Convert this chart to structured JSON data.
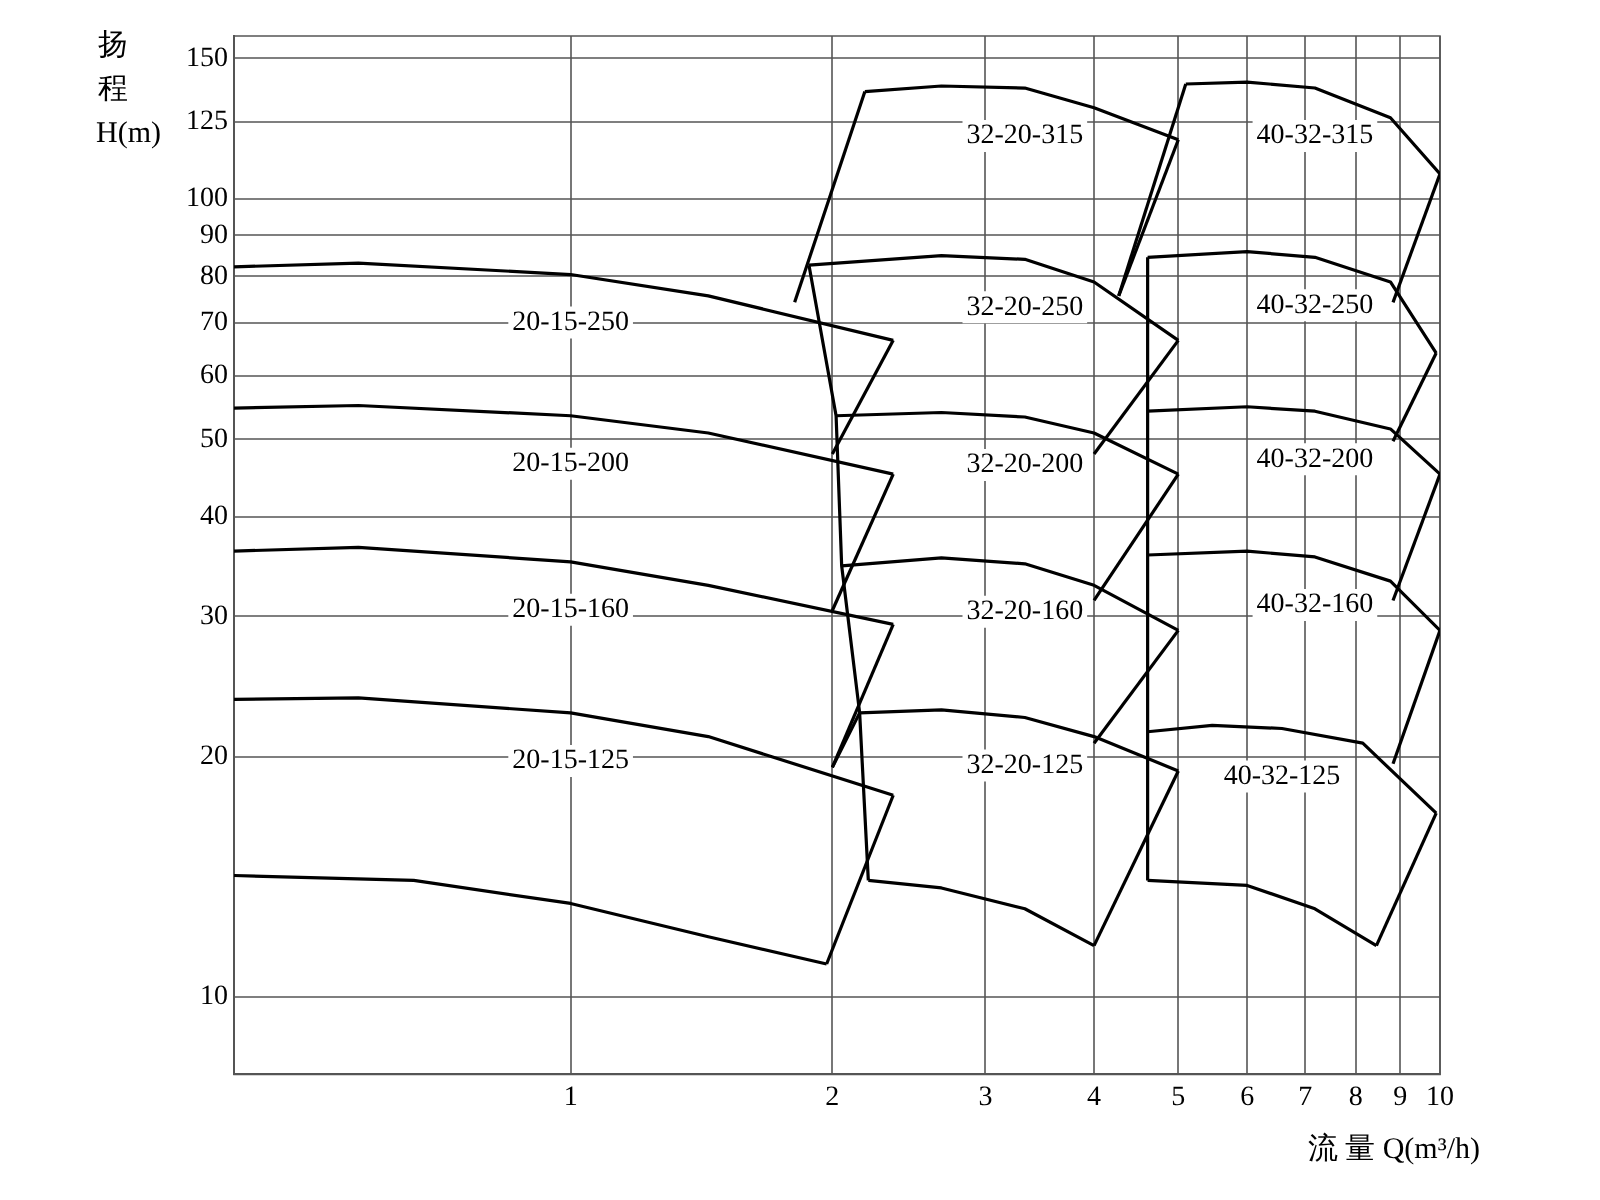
{
  "chart_data": {
    "type": "line",
    "xlabel": "流 量 Q(m³/h)",
    "ylabel": "扬程 H(m)",
    "log": "xy",
    "grid": true,
    "legend": false,
    "marker": "none",
    "line_style": "solid",
    "xlim": [
      0.41,
      10
    ],
    "xticks": [
      1,
      2,
      3,
      4,
      5,
      6,
      7,
      8,
      9,
      10
    ],
    "ylim": [
      8,
      160
    ],
    "yticks": [
      10,
      20,
      30,
      40,
      50,
      60,
      70,
      80,
      90,
      100,
      125,
      150
    ],
    "series": [
      {
        "color": "#000000",
        "x": [
          0.41,
          0.66,
          1,
          1.44,
          1.97
        ],
        "values": [
          14.2,
          14.0,
          13.1,
          11.9,
          11.0
        ]
      },
      {
        "name": "20-15-125",
        "color": "#000000",
        "x": [
          0.41,
          0.57,
          1,
          1.44,
          2.35
        ],
        "values": [
          23.6,
          23.7,
          22.7,
          21.2,
          17.9
        ]
      },
      {
        "name": "20-15-160",
        "color": "#000000",
        "x": [
          0.41,
          0.57,
          1,
          1.44,
          2.35
        ],
        "values": [
          36.2,
          36.6,
          35.1,
          32.8,
          29.3
        ]
      },
      {
        "name": "20-15-200",
        "color": "#000000",
        "x": [
          0.41,
          0.57,
          1,
          1.44,
          2.35
        ],
        "values": [
          54.7,
          55.1,
          53.5,
          50.9,
          45.2
        ]
      },
      {
        "name": "20-15-250",
        "color": "#000000",
        "x": [
          0.41,
          0.57,
          1,
          1.44,
          2.35
        ],
        "values": [
          82.2,
          83.1,
          80.4,
          75.6,
          66.5
        ]
      },
      {
        "color": "#000000",
        "x": [
          1.97,
          2.35
        ],
        "values": [
          11.0,
          17.9
        ]
      },
      {
        "color": "#000000",
        "x": [
          2,
          2.35
        ],
        "values": [
          19.4,
          29.3
        ]
      },
      {
        "color": "#000000",
        "x": [
          2,
          2.35
        ],
        "values": [
          30.5,
          45.2
        ]
      },
      {
        "color": "#000000",
        "x": [
          2,
          2.35
        ],
        "values": [
          47.9,
          66.5
        ]
      },
      {
        "color": "#000000",
        "x": [
          2.2,
          2.67,
          3.33,
          4
        ],
        "values": [
          14.0,
          13.7,
          12.9,
          11.6
        ]
      },
      {
        "name": "32-20-125",
        "color": "#000000",
        "x": [
          2.15,
          2.67,
          3.33,
          4,
          5
        ],
        "values": [
          22.7,
          22.9,
          22.4,
          21.2,
          19.2
        ]
      },
      {
        "name": "32-20-160",
        "color": "#000000",
        "x": [
          2.05,
          2.67,
          3.33,
          4,
          5
        ],
        "values": [
          34.7,
          35.5,
          34.9,
          32.8,
          28.8
        ]
      },
      {
        "name": "32-20-200",
        "color": "#000000",
        "x": [
          2.02,
          2.67,
          3.33,
          4,
          5
        ],
        "values": [
          53.5,
          54.0,
          53.3,
          50.9,
          45.2
        ]
      },
      {
        "name": "32-20-250",
        "color": "#000000",
        "x": [
          1.88,
          2.67,
          3.33,
          4,
          5
        ],
        "values": [
          82.6,
          84.9,
          84.0,
          78.7,
          66.5
        ]
      },
      {
        "name": "32-20-315",
        "color": "#000000",
        "x": [
          2.18,
          2.67,
          3.33,
          4,
          5
        ],
        "values": [
          136.3,
          138.5,
          137.7,
          130.1,
          118.6
        ]
      },
      {
        "color": "#000000",
        "x": [
          4,
          5
        ],
        "values": [
          11.6,
          19.2
        ]
      },
      {
        "color": "#000000",
        "x": [
          4,
          5
        ],
        "values": [
          20.8,
          28.8
        ]
      },
      {
        "color": "#000000",
        "x": [
          4,
          5
        ],
        "values": [
          31.4,
          45.2
        ]
      },
      {
        "color": "#000000",
        "x": [
          4,
          5
        ],
        "values": [
          47.9,
          66.5
        ]
      },
      {
        "color": "#000000",
        "x": [
          4.27,
          5
        ],
        "values": [
          75.6,
          118.6
        ]
      },
      {
        "color": "#000000",
        "x": [
          2,
          2.15
        ],
        "values": [
          19.4,
          22.7
        ]
      },
      {
        "color": "#000000",
        "x": [
          1.88,
          2.02,
          2.05,
          2.15,
          2.2
        ],
        "values": [
          82.6,
          53.5,
          34.7,
          22.7,
          14.0
        ]
      },
      {
        "color": "#000000",
        "x": [
          1.81,
          2.18
        ],
        "values": [
          74.2,
          136.3
        ]
      },
      {
        "color": "#000000",
        "x": [
          4.61,
          6.0,
          7.18,
          8.45
        ],
        "values": [
          14.0,
          13.8,
          12.9,
          11.6
        ]
      },
      {
        "name": "40-32-125",
        "color": "#000000",
        "x": [
          4.61,
          5.47,
          6.58,
          8.15,
          9.9
        ],
        "values": [
          21.5,
          21.9,
          21.7,
          20.8,
          17.0
        ]
      },
      {
        "name": "40-32-160",
        "color": "#000000",
        "x": [
          4.61,
          6.0,
          7.18,
          8.77,
          10
        ],
        "values": [
          35.8,
          36.2,
          35.6,
          33.2,
          28.8
        ]
      },
      {
        "name": "40-32-200",
        "color": "#000000",
        "x": [
          4.61,
          6.0,
          7.18,
          8.77,
          10
        ],
        "values": [
          54.2,
          54.9,
          54.2,
          51.5,
          45.2
        ]
      },
      {
        "name": "40-32-250",
        "color": "#000000",
        "x": [
          4.61,
          6.0,
          7.18,
          8.77,
          9.9
        ],
        "values": [
          84.5,
          85.9,
          84.5,
          78.7,
          64.1
        ]
      },
      {
        "name": "40-32-315",
        "color": "#000000",
        "x": [
          5.1,
          6.0,
          7.18,
          8.77,
          10
        ],
        "values": [
          139.3,
          140.1,
          137.7,
          126.4,
          107.5
        ]
      },
      {
        "color": "#000000",
        "x": [
          8.45,
          9.9
        ],
        "values": [
          11.6,
          17.0
        ]
      },
      {
        "color": "#000000",
        "x": [
          8.83,
          10
        ],
        "values": [
          19.6,
          28.8
        ]
      },
      {
        "color": "#000000",
        "x": [
          8.83,
          10
        ],
        "values": [
          31.4,
          45.2
        ]
      },
      {
        "color": "#000000",
        "x": [
          8.83,
          9.9
        ],
        "values": [
          49.7,
          64.1
        ]
      },
      {
        "color": "#000000",
        "x": [
          8.83,
          10
        ],
        "values": [
          74.2,
          107.5
        ]
      },
      {
        "color": "#000000",
        "x": [
          4.61,
          4.61
        ],
        "values": [
          14.0,
          84.5
        ]
      },
      {
        "color": "#000000",
        "x": [
          4.27,
          5.1
        ],
        "values": [
          75.6,
          139.3
        ]
      }
    ]
  }
}
